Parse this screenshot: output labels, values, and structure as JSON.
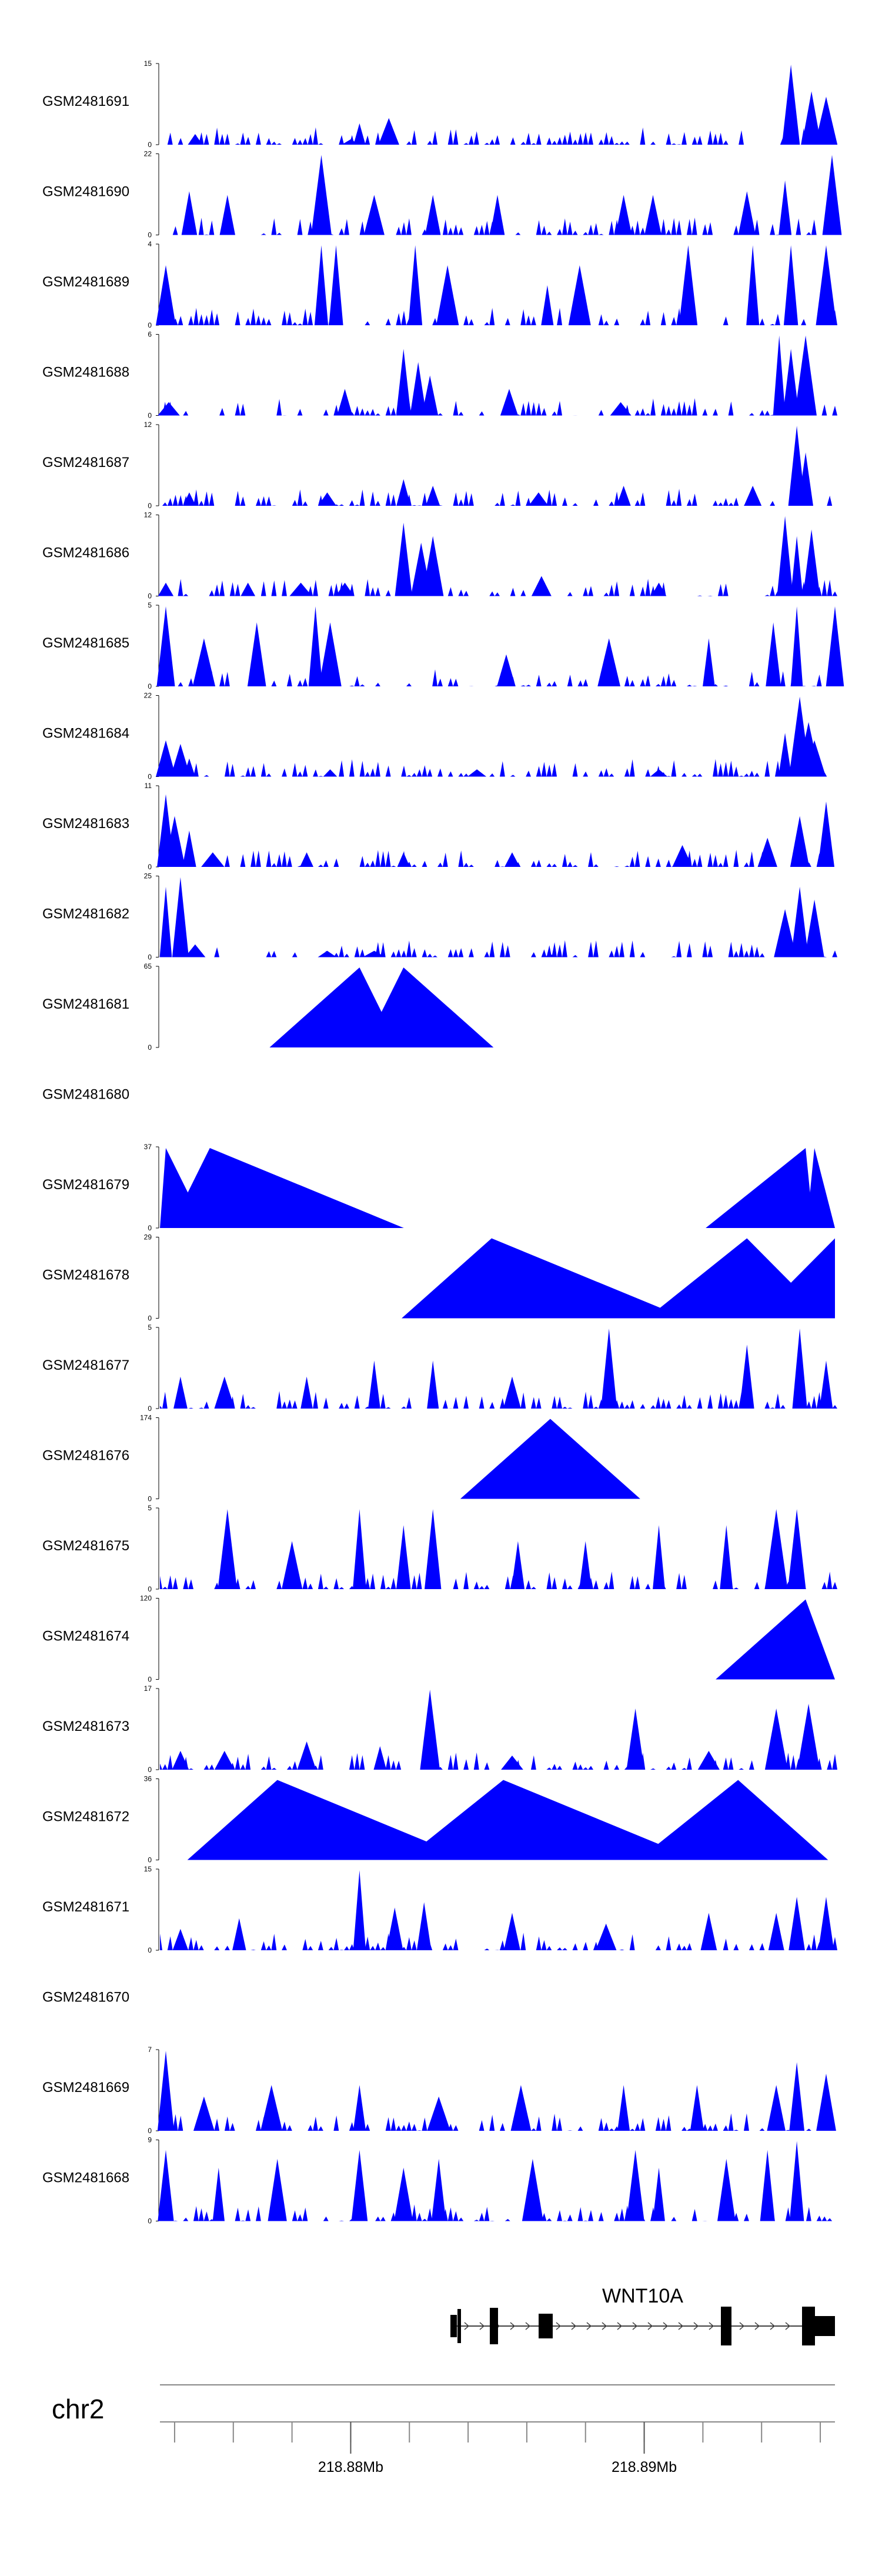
{
  "chart_data": {
    "type": "area",
    "chromosome": "chr2",
    "gene": {
      "name": "WNT10A"
    },
    "x_axis": {
      "unit": "Mb",
      "range": [
        218.8735,
        218.8965
      ],
      "labeled_ticks": [
        {
          "value": 218.88,
          "label": "218.88Mb"
        },
        {
          "value": 218.89,
          "label": "218.89Mb"
        }
      ],
      "minor_tick_step": 0.002
    },
    "fill_color": "#0000ff",
    "tracks": [
      {
        "name": "GSM2481691",
        "ymax": 15,
        "peaks": [
          [
            218.88,
            1
          ],
          [
            218.8747,
            2
          ],
          [
            218.8803,
            4
          ],
          [
            218.8813,
            5
          ],
          [
            218.895,
            15
          ],
          [
            218.8957,
            10
          ],
          [
            218.8962,
            9
          ]
        ]
      },
      {
        "name": "GSM2481690",
        "ymax": 22,
        "peaks": [
          [
            218.8745,
            12
          ],
          [
            218.8758,
            11
          ],
          [
            218.879,
            22
          ],
          [
            218.8808,
            11
          ],
          [
            218.8828,
            11
          ],
          [
            218.885,
            11
          ],
          [
            218.8893,
            11
          ],
          [
            218.8903,
            11
          ],
          [
            218.8935,
            12
          ],
          [
            218.8948,
            15
          ],
          [
            218.8964,
            22
          ]
        ]
      },
      {
        "name": "GSM2481689",
        "ymax": 4,
        "peaks": [
          [
            218.8737,
            3
          ],
          [
            218.879,
            4
          ],
          [
            218.8795,
            4
          ],
          [
            218.8822,
            4
          ],
          [
            218.8833,
            3
          ],
          [
            218.8867,
            2
          ],
          [
            218.8878,
            3
          ],
          [
            218.8915,
            4
          ],
          [
            218.8937,
            4
          ],
          [
            218.895,
            4
          ],
          [
            218.8962,
            4
          ]
        ]
      },
      {
        "name": "GSM2481688",
        "ymax": 6,
        "peaks": [
          [
            218.8738,
            1
          ],
          [
            218.8798,
            2
          ],
          [
            218.8818,
            5
          ],
          [
            218.8823,
            4
          ],
          [
            218.8827,
            3
          ],
          [
            218.8854,
            2
          ],
          [
            218.8892,
            1
          ],
          [
            218.8946,
            6
          ],
          [
            218.895,
            5
          ],
          [
            218.8955,
            6
          ]
        ]
      },
      {
        "name": "GSM2481687",
        "ymax": 12,
        "peaks": [
          [
            218.8745,
            2
          ],
          [
            218.8792,
            2
          ],
          [
            218.8818,
            4
          ],
          [
            218.8828,
            3
          ],
          [
            218.8864,
            2
          ],
          [
            218.8893,
            3
          ],
          [
            218.8937,
            3
          ],
          [
            218.8952,
            12
          ],
          [
            218.8955,
            8
          ]
        ]
      },
      {
        "name": "GSM2481686",
        "ymax": 12,
        "peaks": [
          [
            218.8737,
            2
          ],
          [
            218.8765,
            2
          ],
          [
            218.8783,
            2
          ],
          [
            218.8798,
            2
          ],
          [
            218.8818,
            11
          ],
          [
            218.8824,
            8
          ],
          [
            218.8828,
            9
          ],
          [
            218.8865,
            3
          ],
          [
            218.8905,
            2
          ],
          [
            218.8948,
            12
          ],
          [
            218.8952,
            9
          ],
          [
            218.8957,
            10
          ]
        ]
      },
      {
        "name": "GSM2481685",
        "ymax": 5,
        "peaks": [
          [
            218.8737,
            5
          ],
          [
            218.875,
            3
          ],
          [
            218.8768,
            4
          ],
          [
            218.8793,
            4
          ],
          [
            218.8788,
            5
          ],
          [
            218.8853,
            2
          ],
          [
            218.8888,
            3
          ],
          [
            218.8922,
            3
          ],
          [
            218.8944,
            4
          ],
          [
            218.8952,
            5
          ],
          [
            218.8965,
            5
          ]
        ]
      },
      {
        "name": "GSM2481684",
        "ymax": 22,
        "peaks": [
          [
            218.8737,
            10
          ],
          [
            218.8742,
            9
          ],
          [
            218.8745,
            5
          ],
          [
            218.8793,
            2
          ],
          [
            218.8843,
            2
          ],
          [
            218.8905,
            2
          ],
          [
            218.8948,
            12
          ],
          [
            218.8953,
            22
          ],
          [
            218.8956,
            15
          ],
          [
            218.8958,
            10
          ]
        ]
      },
      {
        "name": "GSM2481683",
        "ymax": 11,
        "peaks": [
          [
            218.8737,
            10
          ],
          [
            218.874,
            7
          ],
          [
            218.8745,
            5
          ],
          [
            218.8753,
            2
          ],
          [
            218.8785,
            2
          ],
          [
            218.8818,
            2
          ],
          [
            218.8855,
            2
          ],
          [
            218.8913,
            3
          ],
          [
            218.8942,
            4
          ],
          [
            218.8953,
            7
          ],
          [
            218.8962,
            9
          ]
        ]
      },
      {
        "name": "GSM2481682",
        "ymax": 25,
        "peaks": [
          [
            218.8737,
            22
          ],
          [
            218.8742,
            25
          ],
          [
            218.8747,
            4
          ],
          [
            218.8792,
            2
          ],
          [
            218.8808,
            2
          ],
          [
            218.8868,
            1
          ],
          [
            218.8948,
            15
          ],
          [
            218.8953,
            22
          ],
          [
            218.8958,
            18
          ]
        ]
      },
      {
        "name": "GSM2481681",
        "ymax": 65,
        "peaks": [
          [
            218.8803,
            65
          ],
          [
            218.8818,
            65
          ]
        ]
      },
      {
        "name": "GSM2481680",
        "ymax": null,
        "peaks": []
      },
      {
        "name": "GSM2481679",
        "ymax": 37,
        "peaks": [
          [
            218.8737,
            37
          ],
          [
            218.8752,
            37
          ],
          [
            218.8955,
            37
          ],
          [
            218.8958,
            37
          ]
        ]
      },
      {
        "name": "GSM2481678",
        "ymax": 29,
        "peaks": [
          [
            218.8848,
            29
          ],
          [
            218.8935,
            29
          ],
          [
            218.8965,
            29
          ]
        ]
      },
      {
        "name": "GSM2481677",
        "ymax": 5,
        "peaks": [
          [
            218.8742,
            2
          ],
          [
            218.8757,
            2
          ],
          [
            218.8785,
            2
          ],
          [
            218.8808,
            3
          ],
          [
            218.8828,
            3
          ],
          [
            218.8855,
            2
          ],
          [
            218.8888,
            5
          ],
          [
            218.8935,
            4
          ],
          [
            218.8953,
            5
          ],
          [
            218.8962,
            3
          ]
        ]
      },
      {
        "name": "GSM2481676",
        "ymax": 174,
        "peaks": [
          [
            218.8868,
            174
          ]
        ]
      },
      {
        "name": "GSM2481675",
        "ymax": 5,
        "peaks": [
          [
            218.8758,
            5
          ],
          [
            218.878,
            3
          ],
          [
            218.8803,
            5
          ],
          [
            218.8818,
            4
          ],
          [
            218.8828,
            5
          ],
          [
            218.8857,
            3
          ],
          [
            218.888,
            3
          ],
          [
            218.8905,
            4
          ],
          [
            218.8928,
            4
          ],
          [
            218.8945,
            5
          ],
          [
            218.8952,
            5
          ]
        ]
      },
      {
        "name": "GSM2481674",
        "ymax": 120,
        "peaks": [
          [
            218.8955,
            120
          ]
        ]
      },
      {
        "name": "GSM2481673",
        "ymax": 17,
        "peaks": [
          [
            218.8742,
            4
          ],
          [
            218.8757,
            4
          ],
          [
            218.8785,
            6
          ],
          [
            218.881,
            5
          ],
          [
            218.8827,
            17
          ],
          [
            218.8855,
            3
          ],
          [
            218.8897,
            13
          ],
          [
            218.8922,
            4
          ],
          [
            218.8945,
            13
          ],
          [
            218.8956,
            14
          ]
        ]
      },
      {
        "name": "GSM2481672",
        "ymax": 36,
        "peaks": [
          [
            218.8775,
            36
          ],
          [
            218.8852,
            36
          ],
          [
            218.8932,
            36
          ]
        ]
      },
      {
        "name": "GSM2481671",
        "ymax": 15,
        "peaks": [
          [
            218.8742,
            4
          ],
          [
            218.8762,
            6
          ],
          [
            218.8803,
            15
          ],
          [
            218.8815,
            8
          ],
          [
            218.8825,
            9
          ],
          [
            218.8855,
            7
          ],
          [
            218.8887,
            5
          ],
          [
            218.8922,
            7
          ],
          [
            218.8945,
            7
          ],
          [
            218.8952,
            10
          ],
          [
            218.8962,
            10
          ]
        ]
      },
      {
        "name": "GSM2481670",
        "ymax": null,
        "peaks": []
      },
      {
        "name": "GSM2481669",
        "ymax": 7,
        "peaks": [
          [
            218.8737,
            7
          ],
          [
            218.875,
            3
          ],
          [
            218.8773,
            4
          ],
          [
            218.8803,
            4
          ],
          [
            218.883,
            3
          ],
          [
            218.8858,
            4
          ],
          [
            218.8893,
            4
          ],
          [
            218.8918,
            4
          ],
          [
            218.8945,
            4
          ],
          [
            218.8952,
            6
          ],
          [
            218.8962,
            5
          ]
        ]
      },
      {
        "name": "GSM2481668",
        "ymax": 9,
        "peaks": [
          [
            218.8737,
            8
          ],
          [
            218.8755,
            6
          ],
          [
            218.8775,
            7
          ],
          [
            218.8803,
            8
          ],
          [
            218.8818,
            6
          ],
          [
            218.883,
            7
          ],
          [
            218.8862,
            7
          ],
          [
            218.8897,
            8
          ],
          [
            218.8905,
            6
          ],
          [
            218.8928,
            7
          ],
          [
            218.8942,
            8
          ],
          [
            218.8952,
            9
          ]
        ]
      }
    ]
  }
}
